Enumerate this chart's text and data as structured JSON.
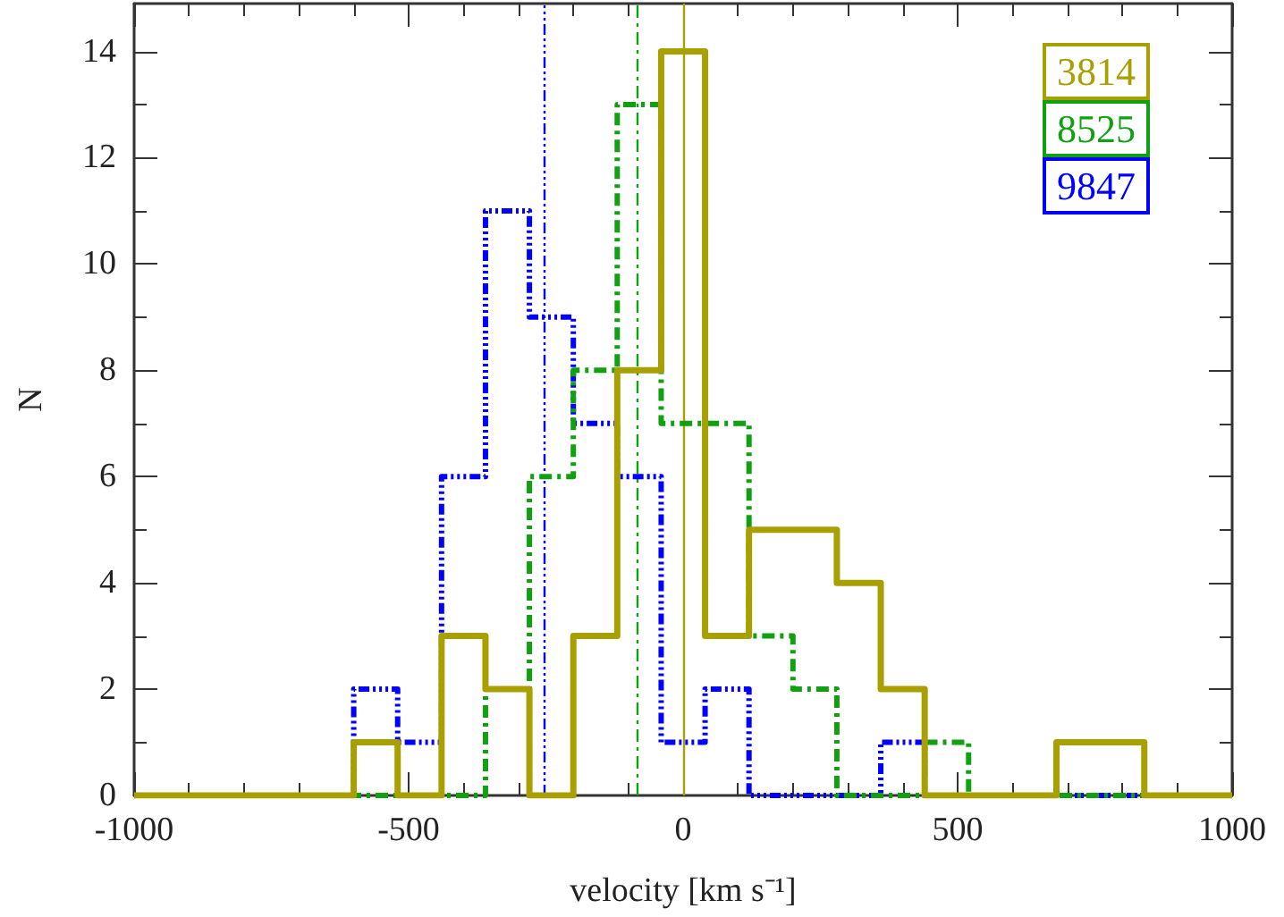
{
  "chart_data": {
    "type": "histogram",
    "xlabel": "velocity [km s⁻¹]",
    "ylabel": "N",
    "bins": [
      -1000,
      -920,
      -840,
      -760,
      -680,
      -600,
      -520,
      -440,
      -360,
      -280,
      -200,
      -120,
      -40,
      40,
      120,
      200,
      280,
      360,
      440,
      520,
      600,
      680,
      760,
      840,
      920,
      1000
    ],
    "series": [
      {
        "name": "3814",
        "color": "#a8a000",
        "line_style": "solid",
        "values": [
          0,
          0,
          0,
          0,
          0,
          1,
          0,
          3,
          2,
          0,
          3,
          8,
          14,
          3,
          5,
          5,
          4,
          2,
          0,
          0,
          0,
          1,
          1,
          0,
          0
        ]
      },
      {
        "name": "8525",
        "color": "#10a010",
        "line_style": "dashed",
        "values": [
          0,
          0,
          0,
          0,
          0,
          0,
          0,
          0,
          2,
          6,
          8,
          13,
          7,
          7,
          3,
          2,
          0,
          0,
          1,
          0,
          0,
          0,
          0,
          0,
          0
        ]
      },
      {
        "name": "9847",
        "color": "#0000ff",
        "line_style": "dotted",
        "values": [
          0,
          0,
          0,
          0,
          0,
          2,
          1,
          6,
          11,
          9,
          7,
          6,
          1,
          2,
          0,
          0,
          0,
          1,
          0,
          0,
          0,
          0,
          0,
          0,
          0
        ]
      }
    ],
    "ref_lines": [
      {
        "axis": "x",
        "value": -254,
        "color": "#0000ff",
        "line_style": "dotted"
      },
      {
        "axis": "x",
        "value": -83,
        "color": "#10a010",
        "line_style": "dashed"
      },
      {
        "axis": "x",
        "value": 0,
        "color": "#a8a000",
        "line_style": "solid"
      }
    ],
    "xlim": [
      -1000,
      1000
    ],
    "xticks": [
      -1000,
      -500,
      0,
      500,
      1000
    ],
    "ylim": [
      0,
      14.9
    ],
    "yticks": [
      0,
      2,
      4,
      6,
      8,
      10,
      12,
      14
    ],
    "grid": false,
    "legend": "top right"
  }
}
